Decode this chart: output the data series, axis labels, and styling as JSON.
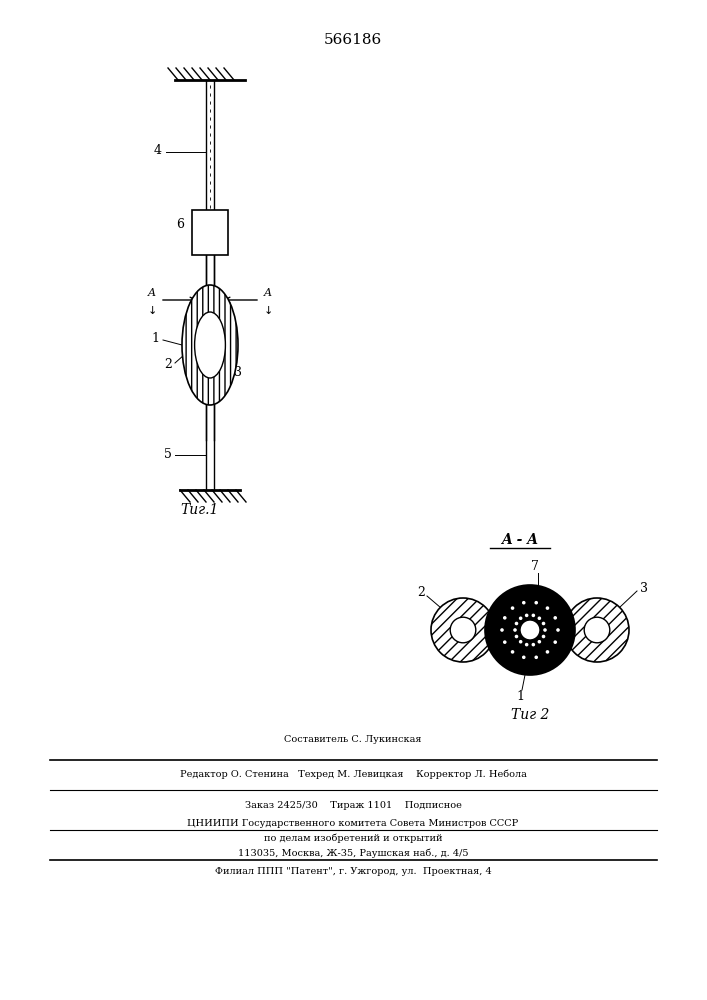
{
  "title": "566186",
  "fig1_label": "Τиг.1",
  "fig2_label": "Τиг 2",
  "aa_label": "A - A",
  "bg_color": "#ffffff",
  "line_color": "#000000",
  "label1": "1",
  "label2": "2",
  "label3": "3",
  "label4": "4",
  "label5": "5",
  "label6": "6",
  "label7": "7",
  "footer_line1": "Составитель С. Лукинская",
  "footer_line2": "Редактор О. Стенина   Техред М. Левицкая    Корректор Л. Небола",
  "footer_line3": "Заказ 2425/30    Тираж 1101    Подписное",
  "footer_line4": "ЦНИИПИ Государственного комитета Совета Министров СССР",
  "footer_line5": "по делам изобретений и открытий",
  "footer_line6": "113035, Москва, Ж-35, Раушская наб., д. 4/5",
  "footer_line7": "Филиал ППП \"Патент\", г. Ужгород, ул.  Проектная, 4"
}
